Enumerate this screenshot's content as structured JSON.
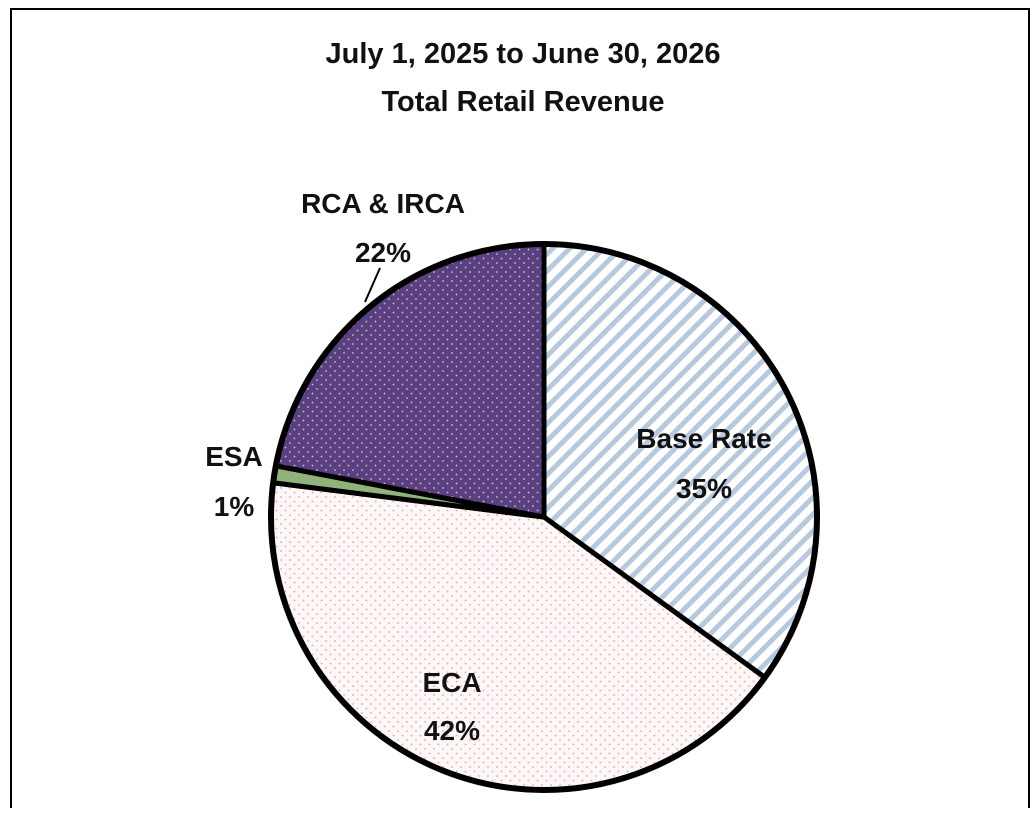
{
  "chart_data": {
    "type": "pie",
    "title_line1": "July 1, 2025 to June 30, 2026",
    "title_line2": "Total Retail Revenue",
    "slices": [
      {
        "name": "Base Rate",
        "percent_label": "35%",
        "value": 35,
        "fill": "hatch",
        "color": "#b8c8de"
      },
      {
        "name": "ECA",
        "percent_label": "42%",
        "value": 42,
        "fill": "dots-light",
        "color": "#e9b8b8"
      },
      {
        "name": "ESA",
        "percent_label": "1%",
        "value": 1,
        "fill": "solid",
        "color": "#8fb37a"
      },
      {
        "name": "RCA & IRCA",
        "percent_label": "22%",
        "value": 22,
        "fill": "dots-dark",
        "color": "#5b4080"
      }
    ],
    "start_angle": "12 o'clock",
    "direction": "clockwise"
  }
}
